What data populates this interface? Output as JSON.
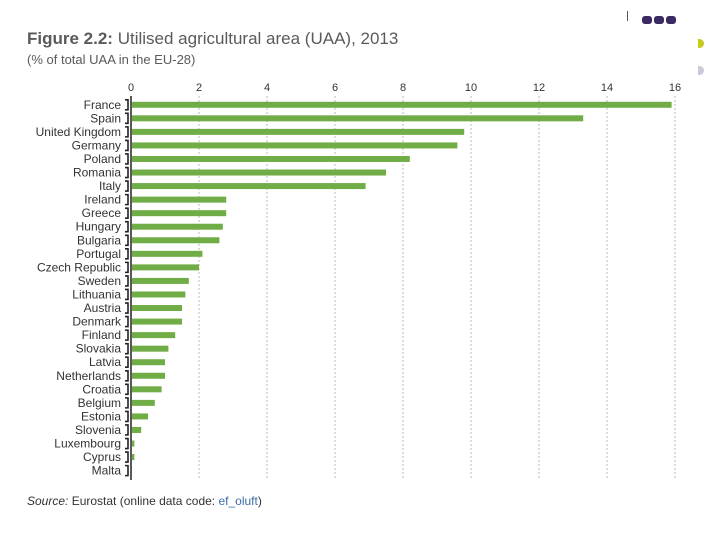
{
  "header": {
    "figure_label": "Figure 2.2:",
    "figure_title": "Utilised agricultural area (UAA), 2013",
    "subtitle": "(% of total UAA in the EU-28)"
  },
  "footer": {
    "source_label": "Source:",
    "source_text": "Eurostat (online data code: ",
    "source_code": "ef_oluft",
    "source_close": ")"
  },
  "colors": {
    "bar": "#70ad47",
    "grid": "#b8b8b8",
    "text": "#333333"
  },
  "chart_data": {
    "type": "bar",
    "orientation": "horizontal",
    "title": "Utilised agricultural area (UAA), 2013",
    "subtitle": "(% of total UAA in the EU-28)",
    "xlabel": "",
    "ylabel": "",
    "xlim": [
      0,
      16
    ],
    "xticks": [
      0,
      2,
      4,
      6,
      8,
      10,
      12,
      14,
      16
    ],
    "grid": true,
    "categories": [
      "France",
      "Spain",
      "United Kingdom",
      "Germany",
      "Poland",
      "Romania",
      "Italy",
      "Ireland",
      "Greece",
      "Hungary",
      "Bulgaria",
      "Portugal",
      "Czech Republic",
      "Sweden",
      "Lithuania",
      "Austria",
      "Denmark",
      "Finland",
      "Slovakia",
      "Latvia",
      "Netherlands",
      "Croatia",
      "Belgium",
      "Estonia",
      "Slovenia",
      "Luxembourg",
      "Cyprus",
      "Malta"
    ],
    "values": [
      15.9,
      13.3,
      9.8,
      9.6,
      8.2,
      7.5,
      6.9,
      2.8,
      2.8,
      2.7,
      2.6,
      2.1,
      2.0,
      1.7,
      1.6,
      1.5,
      1.5,
      1.3,
      1.1,
      1.0,
      1.0,
      0.9,
      0.7,
      0.5,
      0.3,
      0.1,
      0.1,
      0.0
    ]
  }
}
